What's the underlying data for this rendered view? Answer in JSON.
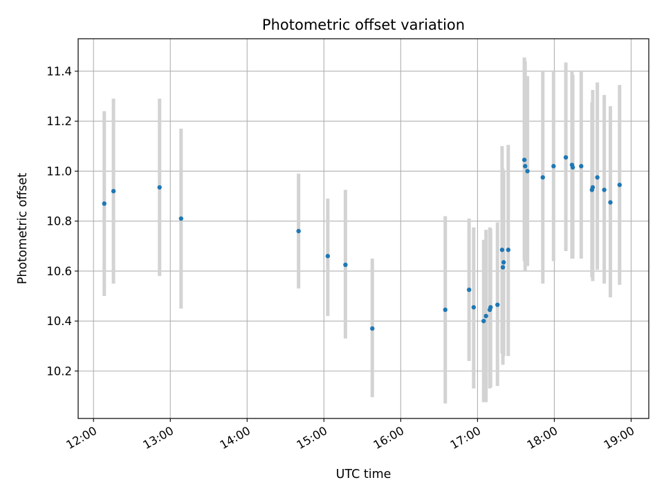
{
  "chart_data": {
    "type": "scatter",
    "title": "Photometric offset variation",
    "xlabel": "UTC time",
    "ylabel": "Photometric offset",
    "xlim": [
      11.8,
      19.23
    ],
    "ylim": [
      10.01,
      11.53
    ],
    "x_ticks": [
      12,
      13,
      14,
      15,
      16,
      17,
      18,
      19
    ],
    "x_tick_labels": [
      "12:00",
      "13:00",
      "14:00",
      "15:00",
      "16:00",
      "17:00",
      "18:00",
      "19:00"
    ],
    "y_ticks": [
      10.2,
      10.4,
      10.6,
      10.8,
      11.0,
      11.2,
      11.4
    ],
    "y_tick_labels": [
      "10.2",
      "10.4",
      "10.6",
      "10.8",
      "11.0",
      "11.2",
      "11.4"
    ],
    "grid": true,
    "marker_color": "#1f77b4",
    "errorbar_color": "#d3d3d3",
    "points": [
      {
        "x": 12.14,
        "y": 10.87,
        "lo": 10.5,
        "hi": 11.24
      },
      {
        "x": 12.26,
        "y": 10.92,
        "lo": 10.55,
        "hi": 11.29
      },
      {
        "x": 12.86,
        "y": 10.935,
        "lo": 10.58,
        "hi": 11.29
      },
      {
        "x": 13.14,
        "y": 10.81,
        "lo": 10.45,
        "hi": 11.17
      },
      {
        "x": 14.67,
        "y": 10.76,
        "lo": 10.53,
        "hi": 10.99
      },
      {
        "x": 15.05,
        "y": 10.66,
        "lo": 10.42,
        "hi": 10.89
      },
      {
        "x": 15.28,
        "y": 10.625,
        "lo": 10.33,
        "hi": 10.925
      },
      {
        "x": 15.63,
        "y": 10.37,
        "lo": 10.095,
        "hi": 10.65
      },
      {
        "x": 16.58,
        "y": 10.445,
        "lo": 10.07,
        "hi": 10.82
      },
      {
        "x": 16.89,
        "y": 10.525,
        "lo": 10.24,
        "hi": 10.81
      },
      {
        "x": 16.95,
        "y": 10.455,
        "lo": 10.13,
        "hi": 10.775
      },
      {
        "x": 17.08,
        "y": 10.4,
        "lo": 10.075,
        "hi": 10.725
      },
      {
        "x": 17.11,
        "y": 10.42,
        "lo": 10.075,
        "hi": 10.765
      },
      {
        "x": 17.16,
        "y": 10.445,
        "lo": 10.13,
        "hi": 10.775
      },
      {
        "x": 17.17,
        "y": 10.455,
        "lo": 10.135,
        "hi": 10.77
      },
      {
        "x": 17.26,
        "y": 10.465,
        "lo": 10.14,
        "hi": 10.795
      },
      {
        "x": 17.32,
        "y": 10.685,
        "lo": 10.27,
        "hi": 11.1
      },
      {
        "x": 17.33,
        "y": 10.615,
        "lo": 10.225,
        "hi": 11.01
      },
      {
        "x": 17.34,
        "y": 10.635,
        "lo": 10.26,
        "hi": 11.0
      },
      {
        "x": 17.4,
        "y": 10.685,
        "lo": 10.26,
        "hi": 11.105
      },
      {
        "x": 17.61,
        "y": 11.045,
        "lo": 10.64,
        "hi": 11.455
      },
      {
        "x": 17.62,
        "y": 11.02,
        "lo": 10.6,
        "hi": 11.44
      },
      {
        "x": 17.65,
        "y": 11.0,
        "lo": 10.62,
        "hi": 11.38
      },
      {
        "x": 17.85,
        "y": 10.975,
        "lo": 10.55,
        "hi": 11.4
      },
      {
        "x": 17.99,
        "y": 11.02,
        "lo": 10.64,
        "hi": 11.4
      },
      {
        "x": 18.15,
        "y": 11.055,
        "lo": 10.68,
        "hi": 11.435
      },
      {
        "x": 18.23,
        "y": 11.025,
        "lo": 10.65,
        "hi": 11.4
      },
      {
        "x": 18.24,
        "y": 11.015,
        "lo": 10.65,
        "hi": 11.385
      },
      {
        "x": 18.35,
        "y": 11.02,
        "lo": 10.65,
        "hi": 11.4
      },
      {
        "x": 18.49,
        "y": 10.925,
        "lo": 10.575,
        "hi": 11.275
      },
      {
        "x": 18.5,
        "y": 10.935,
        "lo": 10.56,
        "hi": 11.325
      },
      {
        "x": 18.56,
        "y": 10.975,
        "lo": 10.605,
        "hi": 11.355
      },
      {
        "x": 18.65,
        "y": 10.925,
        "lo": 10.55,
        "hi": 11.305
      },
      {
        "x": 18.73,
        "y": 10.875,
        "lo": 10.495,
        "hi": 11.26
      },
      {
        "x": 18.85,
        "y": 10.945,
        "lo": 10.545,
        "hi": 11.345
      }
    ]
  }
}
